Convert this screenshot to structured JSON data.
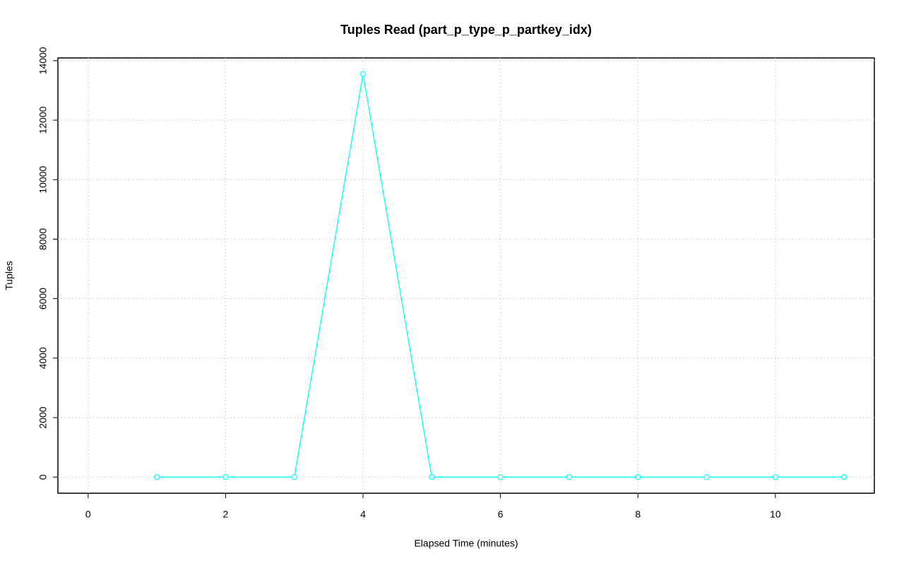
{
  "chart_data": {
    "type": "line",
    "title": "Tuples Read (part_p_type_p_partkey_idx)",
    "x_label": "Elapsed Time (minutes)",
    "y_label": "Tuples",
    "x": [
      1,
      2,
      3,
      4,
      5,
      6,
      7,
      8,
      9,
      10,
      11
    ],
    "series": [
      {
        "color": "#00ffff",
        "values": [
          0,
          0,
          0,
          13550,
          0,
          0,
          0,
          0,
          0,
          0,
          0
        ]
      }
    ],
    "xlim": [
      -0.44,
      11.44
    ],
    "xticks": [
      0,
      2,
      4,
      6,
      8,
      10
    ],
    "ylim": [
      -542,
      14092
    ],
    "yticks": [
      0,
      2000,
      4000,
      6000,
      8000,
      10000,
      12000,
      14000
    ],
    "grid": true
  }
}
